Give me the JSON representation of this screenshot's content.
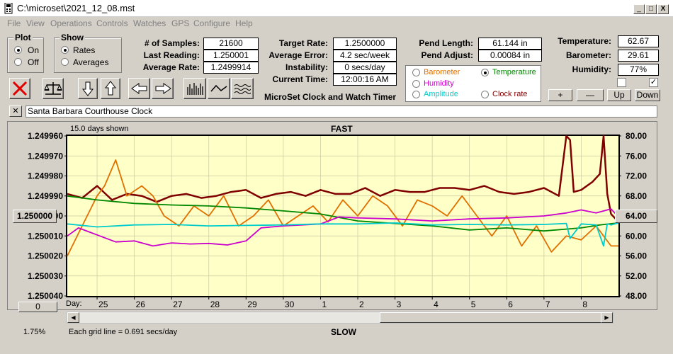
{
  "window": {
    "title": "C:\\microset\\2021_12_08.mst",
    "controls": [
      "_",
      "□",
      "X"
    ]
  },
  "menu": [
    "File",
    "View",
    "Operations",
    "Controls",
    "Watches",
    "GPS",
    "Configure",
    "Help"
  ],
  "plot_group": {
    "title": "Plot",
    "on": "On",
    "off": "Off"
  },
  "show_group": {
    "title": "Show",
    "rates": "Rates",
    "averages": "Averages"
  },
  "stats1": {
    "samples_label": "# of Samples:",
    "samples": "21600",
    "last_label": "Last Reading:",
    "last": "1.250001",
    "avg_label": "Average Rate:",
    "avg": "1.2499914"
  },
  "stats2": {
    "target_label": "Target Rate:",
    "target": "1.2500000",
    "error_label": "Average Error:",
    "error": "4.2 sec/week",
    "instab_label": "Instability:",
    "instab": "0 secs/day",
    "time_label": "Current Time:",
    "time": "12:00:16 AM"
  },
  "app_title": "MicroSet Clock and Watch Timer",
  "pend": {
    "length_label": "Pend Length:",
    "length": "61.144 in",
    "adjust_label": "Pend Adjust:",
    "adjust": "0.00084 in"
  },
  "env": {
    "temp_label": "Temperature:",
    "temp": "62.67",
    "baro_label": "Barometer:",
    "baro": "29.61",
    "hum_label": "Humidity:",
    "hum": "77%"
  },
  "sensor_select": {
    "barometer": "Barometer",
    "temperature": "Temperature",
    "humidity": "Humidity",
    "amplitude": "Amplitude",
    "clock_rate": "Clock rate",
    "colors": {
      "barometer": "#e07000",
      "temperature": "#008800",
      "humidity": "#cc00cc",
      "amplitude": "#00cccc",
      "clock_rate": "#800000"
    }
  },
  "adjust_buttons": {
    "plus": "+",
    "minus": "—",
    "up": "Up",
    "down": "Down"
  },
  "clock_name": "Santa Barbara Courthouse Clock",
  "chart_labels": {
    "days_shown": "15.0 days shown",
    "fast": "FAST",
    "slow": "SLOW",
    "grid_note": "Each grid line = 0.691 secs/day",
    "day_label": "Day:",
    "left_offset": "1.250000",
    "right_offset": "64.00",
    "scroll_value": "0",
    "percent": "1.75%"
  },
  "chart_data": {
    "type": "line",
    "x_label": "Day",
    "x_ticks": [
      "25",
      "26",
      "27",
      "28",
      "29",
      "30",
      "1",
      "2",
      "3",
      "4",
      "5",
      "6",
      "7",
      "8"
    ],
    "left_axis": {
      "ticks": [
        "1.249960",
        "1.249970",
        "1.249980",
        "1.249990",
        "1.250000",
        "1.250010",
        "1.250020",
        "1.250030",
        "1.250040"
      ],
      "ylim": [
        1.24996,
        1.25004
      ],
      "inverted": true
    },
    "right_axis": {
      "ticks": [
        "80.00",
        "76.00",
        "72.00",
        "68.00",
        "64.00",
        "60.00",
        "56.00",
        "52.00",
        "48.00"
      ],
      "ylim": [
        48,
        80
      ]
    },
    "x_range_days": [
      24.2,
      39.0
    ],
    "series": [
      {
        "name": "Clock rate",
        "color": "#800000",
        "axis": "left",
        "x": [
          24.2,
          24.6,
          25,
          25.4,
          25.8,
          26.2,
          26.6,
          27,
          27.4,
          27.8,
          28.2,
          28.6,
          29,
          29.4,
          29.8,
          30.2,
          30.6,
          31,
          31.4,
          31.8,
          32.2,
          32.6,
          33,
          33.4,
          33.8,
          34.2,
          34.6,
          35,
          35.4,
          35.8,
          36.2,
          36.6,
          37,
          37.4,
          37.6,
          37.7,
          37.8,
          38,
          38.3,
          38.5,
          38.6,
          38.7,
          38.8,
          39
        ],
        "y": [
          1.249989,
          1.249991,
          1.249985,
          1.249992,
          1.249989,
          1.24999,
          1.249993,
          1.24999,
          1.249989,
          1.249991,
          1.24999,
          1.249988,
          1.249987,
          1.249991,
          1.249989,
          1.249988,
          1.24999,
          1.249987,
          1.249989,
          1.249989,
          1.249986,
          1.24999,
          1.249987,
          1.249988,
          1.249988,
          1.249986,
          1.249986,
          1.249987,
          1.249985,
          1.249988,
          1.249989,
          1.249988,
          1.249986,
          1.24999,
          1.24996,
          1.249962,
          1.249988,
          1.249987,
          1.249983,
          1.249979,
          1.24996,
          1.249989,
          1.249999,
          1.250003
        ]
      },
      {
        "name": "Barometer",
        "color": "#e07000",
        "axis": "left",
        "x": [
          24.2,
          24.6,
          25,
          25.2,
          25.5,
          25.8,
          26.2,
          26.5,
          26.8,
          27.2,
          27.6,
          28,
          28.4,
          28.8,
          29.2,
          29.6,
          30,
          30.4,
          30.8,
          31.2,
          31.6,
          32,
          32.4,
          32.8,
          33.2,
          33.6,
          34,
          34.4,
          34.8,
          35.2,
          35.6,
          36,
          36.4,
          36.8,
          37.2,
          37.6,
          38,
          38.4,
          38.8,
          39
        ],
        "y": [
          1.25002,
          1.250005,
          1.24999,
          1.249985,
          1.249972,
          1.24999,
          1.249985,
          1.24999,
          1.25,
          1.250005,
          1.249995,
          1.25,
          1.24999,
          1.250005,
          1.25,
          1.249992,
          1.250005,
          1.25,
          1.249995,
          1.250003,
          1.249992,
          1.25,
          1.24999,
          1.249995,
          1.250005,
          1.249992,
          1.249995,
          1.25,
          1.24999,
          1.25,
          1.25001,
          1.25,
          1.250015,
          1.250005,
          1.250018,
          1.25001,
          1.250012,
          1.250005,
          1.250015,
          1.250015
        ]
      },
      {
        "name": "Temperature",
        "color": "#008800",
        "axis": "right",
        "x": [
          24.2,
          25,
          26,
          27,
          28,
          29,
          30,
          31,
          32,
          33,
          34,
          35,
          36,
          37,
          38,
          38.5,
          39
        ],
        "y": [
          68.0,
          67.2,
          66.5,
          66.2,
          66.0,
          65.6,
          65.0,
          64.4,
          63.0,
          62.5,
          62.0,
          61.2,
          61.6,
          61.0,
          61.6,
          62.2,
          62.6
        ]
      },
      {
        "name": "Humidity",
        "color": "#cc00cc",
        "axis": "right",
        "x": [
          24.2,
          24.5,
          25,
          25.5,
          26,
          26.5,
          27,
          27.5,
          28,
          28.5,
          29,
          29.4,
          30,
          30.5,
          31,
          31.5,
          32,
          33,
          34,
          35,
          36,
          37,
          37.6,
          38,
          38.4,
          38.8,
          39
        ],
        "y": [
          60.0,
          61.6,
          60.2,
          58.8,
          59.0,
          58.0,
          58.6,
          58.4,
          58.5,
          58.2,
          59.0,
          61.6,
          62.0,
          62.2,
          62.4,
          63.8,
          63.6,
          63.4,
          63.0,
          63.4,
          63.6,
          64.0,
          64.6,
          65.2,
          64.6,
          65.4,
          63.8
        ]
      },
      {
        "name": "Amplitude",
        "color": "#00cccc",
        "axis": "right",
        "x": [
          24.2,
          25,
          26,
          27,
          28,
          29,
          30,
          31,
          32,
          33,
          34,
          35,
          36,
          37,
          37.6,
          37.7,
          38,
          38.4,
          38.6,
          38.7,
          38.8,
          39
        ],
        "y": [
          62.4,
          61.8,
          62.2,
          62.3,
          62.0,
          62.1,
          62.2,
          62.4,
          62.4,
          62.6,
          62.2,
          62.3,
          62.2,
          62.3,
          62.5,
          59.5,
          62.4,
          62.2,
          58.0,
          62.4,
          62.2,
          62.6
        ]
      }
    ]
  }
}
